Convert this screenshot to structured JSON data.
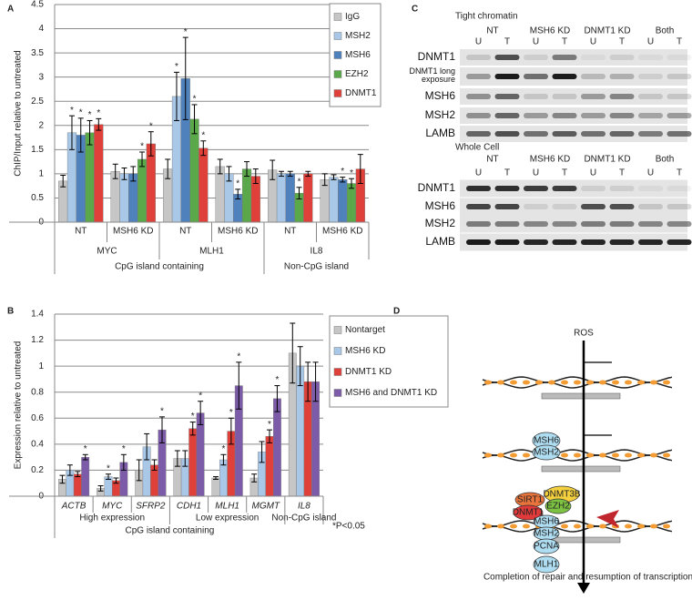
{
  "chart_data": [
    {
      "type": "bar",
      "panel": "A",
      "ylabel": "ChIP/Input relative to untreated",
      "categories": [
        "NT",
        "MSH6 KD",
        "NT",
        "MSH6 KD",
        "NT",
        "MSH6 KD"
      ],
      "group_labels": [
        "MYC",
        "MLH1",
        "IL8"
      ],
      "supergroup_labels": [
        "CpG island containing",
        "Non-CpG island"
      ],
      "ylim": [
        0,
        4.5
      ],
      "yticks": [
        0,
        0.5,
        1,
        1.5,
        2,
        2.5,
        3,
        3.5,
        4,
        4.5
      ],
      "grid": true,
      "legend": "upper right",
      "series": [
        {
          "name": "IgG",
          "color": "#c6c6c6",
          "values": [
            0.85,
            1.05,
            1.1,
            1.15,
            1.08,
            0.88
          ],
          "errors": [
            0.12,
            0.15,
            0.2,
            0.15,
            0.2,
            0.12
          ],
          "significance": [
            null,
            null,
            null,
            null,
            null,
            null
          ]
        },
        {
          "name": "MSH2",
          "color": "#a9c8e8",
          "values": [
            1.85,
            1.0,
            2.6,
            1.0,
            1.0,
            0.93
          ],
          "errors": [
            0.35,
            0.12,
            0.5,
            0.15,
            0.05,
            0.05
          ],
          "significance": [
            "*",
            null,
            "*",
            null,
            null,
            null
          ]
        },
        {
          "name": "MSH6",
          "color": "#4f81bd",
          "values": [
            1.8,
            1.0,
            2.97,
            0.58,
            1.0,
            0.88
          ],
          "errors": [
            0.35,
            0.15,
            0.85,
            0.1,
            0.05,
            0.05
          ],
          "significance": [
            "*",
            null,
            "*",
            "*",
            null,
            "*"
          ]
        },
        {
          "name": "EZH2",
          "color": "#5aa84a",
          "values": [
            1.85,
            1.3,
            2.13,
            1.1,
            0.6,
            0.8
          ],
          "errors": [
            0.25,
            0.15,
            0.3,
            0.15,
            0.12,
            0.1
          ],
          "significance": [
            "*",
            "*",
            "*",
            null,
            "*",
            "*"
          ]
        },
        {
          "name": "DNMT1",
          "color": "#e0403a",
          "values": [
            2.02,
            1.62,
            1.53,
            0.95,
            1.0,
            1.1
          ],
          "errors": [
            0.12,
            0.25,
            0.15,
            0.15,
            0.05,
            0.3
          ],
          "significance": [
            "*",
            "*",
            "*",
            null,
            null,
            null
          ]
        }
      ]
    },
    {
      "type": "bar",
      "panel": "B",
      "ylabel": "Expression relative to untreated",
      "categories": [
        "ACTB",
        "MYC",
        "SFRP2",
        "CDH1",
        "MLH1",
        "MGMT",
        "IL8"
      ],
      "group_labels": [
        "High expression",
        "Low expression",
        "Non-CpG island"
      ],
      "supergroup_labels": [
        "CpG island containing"
      ],
      "note": "*P<0.05",
      "ylim": [
        0,
        1.4
      ],
      "yticks": [
        0,
        0.2,
        0.4,
        0.6,
        0.8,
        1,
        1.2,
        1.4
      ],
      "grid": true,
      "legend": "right",
      "series": [
        {
          "name": "Nontarget",
          "color": "#c6c6c6",
          "values": [
            0.13,
            0.06,
            0.2,
            0.29,
            0.14,
            0.14,
            1.1
          ],
          "errors": [
            0.03,
            0.02,
            0.08,
            0.06,
            0.01,
            0.03,
            0.23
          ],
          "significance": [
            null,
            null,
            null,
            null,
            null,
            null,
            null
          ]
        },
        {
          "name": "MSH6 KD",
          "color": "#a9c8e8",
          "values": [
            0.2,
            0.15,
            0.38,
            0.29,
            0.28,
            0.34,
            1.0
          ],
          "errors": [
            0.04,
            0.02,
            0.1,
            0.06,
            0.04,
            0.08,
            0.15
          ],
          "significance": [
            null,
            "*",
            null,
            null,
            "*",
            null,
            null
          ]
        },
        {
          "name": "DNMT1 KD",
          "color": "#e0403a",
          "values": [
            0.17,
            0.12,
            0.24,
            0.52,
            0.5,
            0.46,
            0.88
          ],
          "errors": [
            0.02,
            0.02,
            0.04,
            0.05,
            0.1,
            0.05,
            0.15
          ],
          "significance": [
            null,
            null,
            null,
            "*",
            "*",
            "*",
            null
          ]
        },
        {
          "name": "MSH6 and DNMT1 KD",
          "color": "#7c5ca8",
          "values": [
            0.3,
            0.26,
            0.51,
            0.64,
            0.85,
            0.75,
            0.88
          ],
          "errors": [
            0.02,
            0.06,
            0.1,
            0.09,
            0.18,
            0.1,
            0.15
          ],
          "significance": [
            "*",
            "*",
            "*",
            "*",
            "*",
            "*",
            null
          ]
        }
      ]
    }
  ],
  "panel_c": {
    "label": "C",
    "blocks": [
      {
        "title": "Tight chromatin",
        "groups": [
          "NT",
          "MSH6 KD",
          "DNMT1 KD",
          "Both"
        ],
        "lanes": [
          "U",
          "T",
          "U",
          "T",
          "U",
          "T",
          "U",
          "T"
        ],
        "rows": [
          "DNMT1",
          "DNMT1 long exposure",
          "MSH6",
          "MSH2",
          "LAMB"
        ]
      },
      {
        "title": "Whole Cell",
        "groups": [
          "NT",
          "MSH6 KD",
          "DNMT1 KD",
          "Both"
        ],
        "lanes": [
          "U",
          "T",
          "U",
          "T",
          "U",
          "T",
          "U",
          "T"
        ],
        "rows": [
          "DNMT1",
          "MSH6",
          "MSH2",
          "LAMB"
        ]
      }
    ]
  },
  "panel_d": {
    "label": "D",
    "nodes": [
      {
        "label": "ROS"
      },
      {
        "label": "MSH6"
      },
      {
        "label": "MSH2"
      },
      {
        "label": "DNMT3B"
      },
      {
        "label": "SIRT1"
      },
      {
        "label": "EZH2"
      },
      {
        "label": "DNMT1"
      },
      {
        "label": "MSH6"
      },
      {
        "label": "MSH2"
      },
      {
        "label": "PCNA"
      },
      {
        "label": "MLH1"
      }
    ],
    "caption": "Completion of repair and resumption of transcription"
  }
}
